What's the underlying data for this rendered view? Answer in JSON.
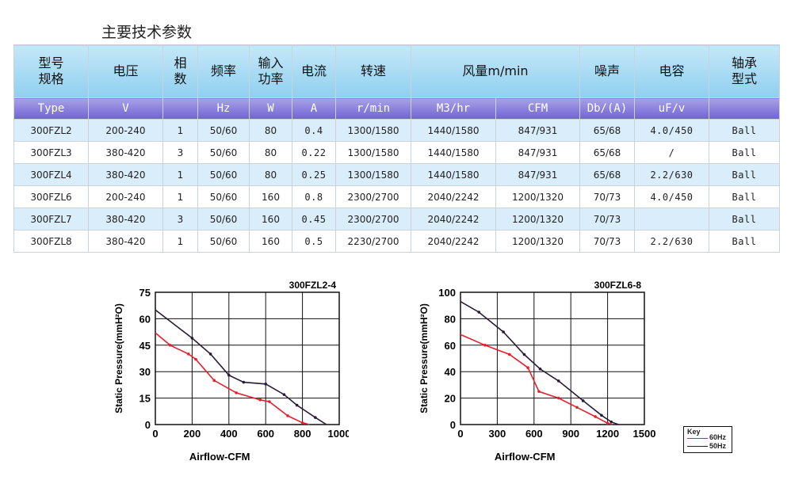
{
  "page_title": "主要技术参数",
  "table": {
    "headers": [
      "型号\n规格",
      "电压",
      "相\n数",
      "频率",
      "输入\n功率",
      "电流",
      "转速",
      "风量m/min",
      "噪声",
      "电容",
      "轴承\n型式"
    ],
    "units": [
      "Type",
      "V",
      "",
      "Hz",
      "W",
      "A",
      "r/min",
      "M3/hr",
      "CFM",
      "Db/(A)",
      "uF/v",
      ""
    ],
    "rows": [
      [
        "300FZL2",
        "200-240",
        "1",
        "50/60",
        "80",
        "0.4",
        "1300/1580",
        "1440/1580",
        "847/931",
        "65/68",
        "4.0/450",
        "Ball"
      ],
      [
        "300FZL3",
        "380-420",
        "3",
        "50/60",
        "80",
        "0.22",
        "1300/1580",
        "1440/1580",
        "847/931",
        "65/68",
        "/",
        "Ball"
      ],
      [
        "300FZL4",
        "380-420",
        "1",
        "50/60",
        "80",
        "0.25",
        "1300/1580",
        "1440/1580",
        "847/931",
        "65/68",
        "2.2/630",
        "Ball"
      ],
      [
        "300FZL6",
        "200-240",
        "1",
        "50/60",
        "160",
        "0.8",
        "2300/2700",
        "2040/2242",
        "1200/1320",
        "70/73",
        "4.0/450",
        "Ball"
      ],
      [
        "300FZL7",
        "380-420",
        "3",
        "50/60",
        "160",
        "0.45",
        "2300/2700",
        "2040/2242",
        "1200/1320",
        "70/73",
        "",
        "Ball"
      ],
      [
        "300FZL8",
        "380-420",
        "1",
        "50/60",
        "160",
        "0.5",
        "2230/2700",
        "2040/2242",
        "1200/1320",
        "70/73",
        "2.2/630",
        "Ball"
      ]
    ]
  },
  "chart_data": [
    {
      "type": "line",
      "title": "300FZL2-4",
      "xlabel": "Airflow-CFM",
      "ylabel": "Static Pressure(mmH²O)",
      "xlim": [
        0,
        1000
      ],
      "ylim": [
        0,
        75
      ],
      "xticks": [
        0,
        200,
        400,
        600,
        800,
        1000
      ],
      "yticks": [
        0,
        15,
        30,
        45,
        60,
        75
      ],
      "grid": true,
      "series": [
        {
          "name": "60Hz",
          "color": "#e8202c",
          "points": [
            [
              0,
              52
            ],
            [
              80,
              45
            ],
            [
              180,
              40
            ],
            [
              220,
              37
            ],
            [
              320,
              25
            ],
            [
              440,
              18
            ],
            [
              570,
              14
            ],
            [
              620,
              13
            ],
            [
              720,
              5
            ],
            [
              800,
              1
            ],
            [
              840,
              0
            ]
          ]
        },
        {
          "name": "50Hz",
          "color": "#2a1a3a",
          "points": [
            [
              0,
              65
            ],
            [
              200,
              49
            ],
            [
              300,
              40
            ],
            [
              400,
              28
            ],
            [
              480,
              24
            ],
            [
              600,
              23
            ],
            [
              700,
              17
            ],
            [
              770,
              11
            ],
            [
              870,
              4
            ],
            [
              930,
              0
            ]
          ]
        }
      ]
    },
    {
      "type": "line",
      "title": "300FZL6-8",
      "xlabel": "Airflow-CFM",
      "ylabel": "Static Pressure(mmH²O)",
      "xlim": [
        0,
        1500
      ],
      "ylim": [
        0,
        100
      ],
      "xticks": [
        0,
        300,
        600,
        900,
        1200,
        1500
      ],
      "yticks": [
        0,
        20,
        40,
        60,
        80,
        100
      ],
      "grid": true,
      "series": [
        {
          "name": "60Hz",
          "color": "#e8202c",
          "points": [
            [
              0,
              68
            ],
            [
              200,
              60
            ],
            [
              400,
              53
            ],
            [
              550,
              43
            ],
            [
              640,
              25
            ],
            [
              800,
              20
            ],
            [
              950,
              13
            ],
            [
              1100,
              6
            ],
            [
              1200,
              1
            ],
            [
              1240,
              0
            ]
          ]
        },
        {
          "name": "50Hz",
          "color": "#2a1a3a",
          "points": [
            [
              0,
              93
            ],
            [
              150,
              85
            ],
            [
              350,
              70
            ],
            [
              520,
              53
            ],
            [
              650,
              42
            ],
            [
              800,
              33
            ],
            [
              1000,
              18
            ],
            [
              1150,
              7
            ],
            [
              1230,
              2
            ],
            [
              1290,
              0
            ]
          ]
        }
      ]
    }
  ],
  "legend": {
    "title": "Key",
    "items": [
      "60Hz",
      "50Hz"
    ],
    "colors": [
      "#e8202c",
      "#2a1a3a"
    ]
  }
}
